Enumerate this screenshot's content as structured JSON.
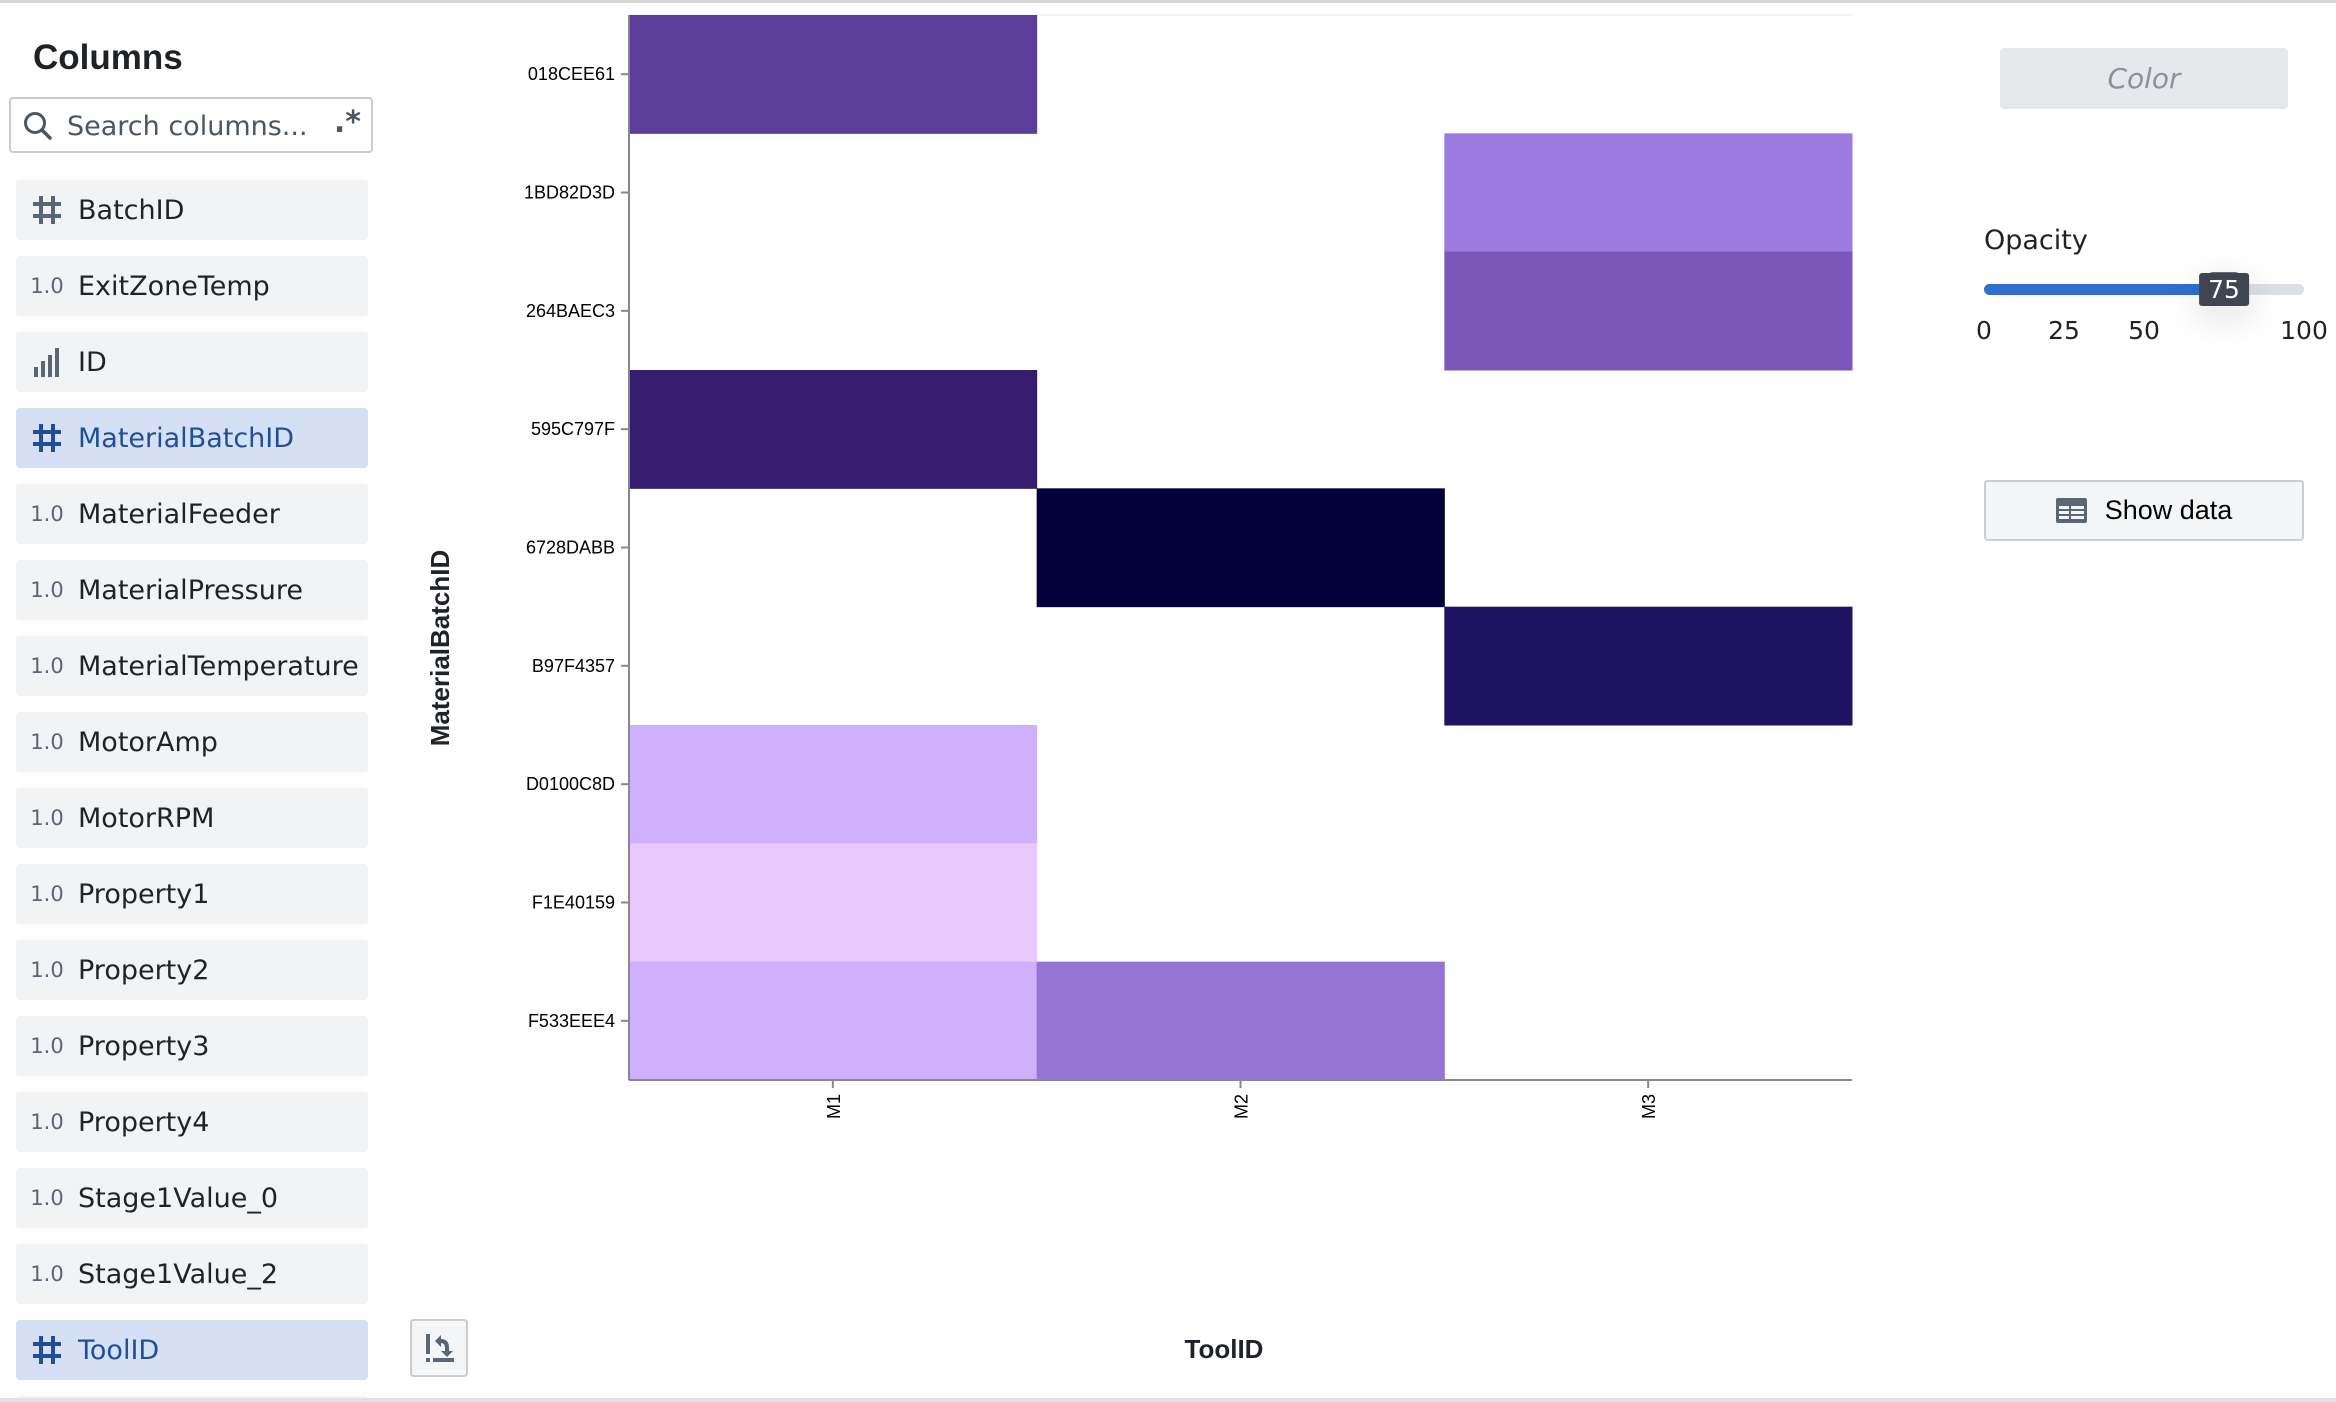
{
  "sidebar": {
    "title": "Columns",
    "search_placeholder": "Search columns...",
    "regex_toggle": ".*",
    "items": [
      {
        "label": "BatchID",
        "type": "hash",
        "type_text": "",
        "selected": false
      },
      {
        "label": "ExitZoneTemp",
        "type": "number",
        "type_text": "1.0",
        "selected": false
      },
      {
        "label": "ID",
        "type": "bars",
        "type_text": "",
        "selected": false
      },
      {
        "label": "MaterialBatchID",
        "type": "hash",
        "type_text": "",
        "selected": true
      },
      {
        "label": "MaterialFeeder",
        "type": "number",
        "type_text": "1.0",
        "selected": false
      },
      {
        "label": "MaterialPressure",
        "type": "number",
        "type_text": "1.0",
        "selected": false
      },
      {
        "label": "MaterialTemperature",
        "type": "number",
        "type_text": "1.0",
        "selected": false
      },
      {
        "label": "MotorAmp",
        "type": "number",
        "type_text": "1.0",
        "selected": false
      },
      {
        "label": "MotorRPM",
        "type": "number",
        "type_text": "1.0",
        "selected": false
      },
      {
        "label": "Property1",
        "type": "number",
        "type_text": "1.0",
        "selected": false
      },
      {
        "label": "Property2",
        "type": "number",
        "type_text": "1.0",
        "selected": false
      },
      {
        "label": "Property3",
        "type": "number",
        "type_text": "1.0",
        "selected": false
      },
      {
        "label": "Property4",
        "type": "number",
        "type_text": "1.0",
        "selected": false
      },
      {
        "label": "Stage1Value_0",
        "type": "number",
        "type_text": "1.0",
        "selected": false
      },
      {
        "label": "Stage1Value_2",
        "type": "number",
        "type_text": "1.0",
        "selected": false
      },
      {
        "label": "ToolID",
        "type": "hash",
        "type_text": "",
        "selected": true
      }
    ]
  },
  "controls": {
    "color_label": "Color",
    "opacity_label": "Opacity",
    "opacity_value": 75,
    "opacity_ticks": [
      "0",
      "25",
      "50",
      "75",
      "100"
    ],
    "opacity_tooltip": "75",
    "show_data_label": "Show data",
    "accent": "#2f6fd0"
  },
  "chart_data": {
    "type": "heatmap",
    "xlabel": "ToolID",
    "ylabel": "MaterialBatchID",
    "x_categories": [
      "M1",
      "M2",
      "M3"
    ],
    "y_categories": [
      "018CEE61",
      "1BD82D3D",
      "264BAEC3",
      "595C797F",
      "6728DABB",
      "B97F4357",
      "D0100C8D",
      "F1E40159",
      "F533EEE4"
    ],
    "cells": [
      {
        "x": "M1",
        "y": "018CEE61",
        "color": "#5a3e9a"
      },
      {
        "x": "M3",
        "y": "1BD82D3D",
        "color": "#9b7bdf"
      },
      {
        "x": "M3",
        "y": "264BAEC3",
        "color": "#7857b8"
      },
      {
        "x": "M1",
        "y": "595C797F",
        "color": "#361c6e"
      },
      {
        "x": "M2",
        "y": "6728DABB",
        "color": "#04003a"
      },
      {
        "x": "M3",
        "y": "B97F4357",
        "color": "#1e1262"
      },
      {
        "x": "M1",
        "y": "D0100C8D",
        "color": "#cfb0fd"
      },
      {
        "x": "M1",
        "y": "F1E40159",
        "color": "#eac7fd"
      },
      {
        "x": "M1",
        "y": "F533EEE4",
        "color": "#cfb0fd"
      },
      {
        "x": "M2",
        "y": "F533EEE4",
        "color": "#9475d6"
      }
    ]
  }
}
